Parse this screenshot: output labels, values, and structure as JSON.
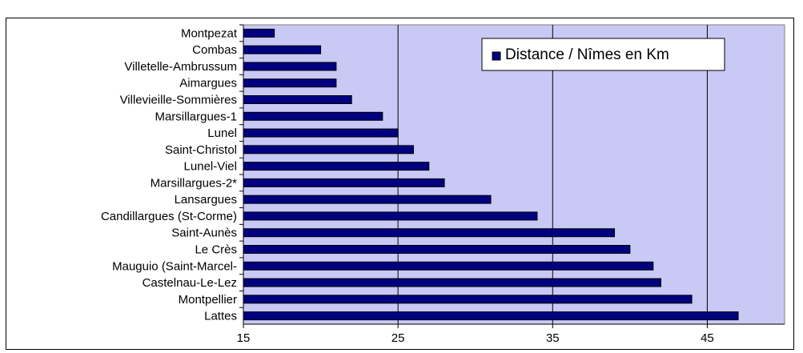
{
  "chart_data": {
    "type": "bar",
    "orientation": "horizontal",
    "categories": [
      "Montpezat",
      "Combas",
      "Villetelle-Ambrussum",
      "Aimargues",
      "Villevieille-Sommières",
      "Marsillargues-1",
      "Lunel",
      "Saint-Christol",
      "Lunel-Viel",
      "Marsillargues-2*",
      "Lansargues",
      "Candillargues (St-Corme)",
      "Saint-Aunès",
      "Le Crès",
      "Mauguio (Saint-Marcel-",
      "Castelnau-Le-Lez",
      "Montpellier",
      "Lattes"
    ],
    "series": [
      {
        "name": "Distance / Nîmes en Km",
        "values": [
          17,
          20,
          21,
          21,
          22,
          24,
          25,
          26,
          27,
          28,
          31,
          34,
          39,
          40,
          41.5,
          42,
          44,
          47
        ]
      }
    ],
    "xlim": [
      15,
      50
    ],
    "xticks": [
      "15",
      "25",
      "35",
      "45"
    ],
    "grid": true,
    "legend_position": "top-right",
    "colors": {
      "bar_fill": "#000080",
      "bar_edge": "#000000",
      "plot_background": "#c9c9f5",
      "gridline": "#000000"
    }
  }
}
